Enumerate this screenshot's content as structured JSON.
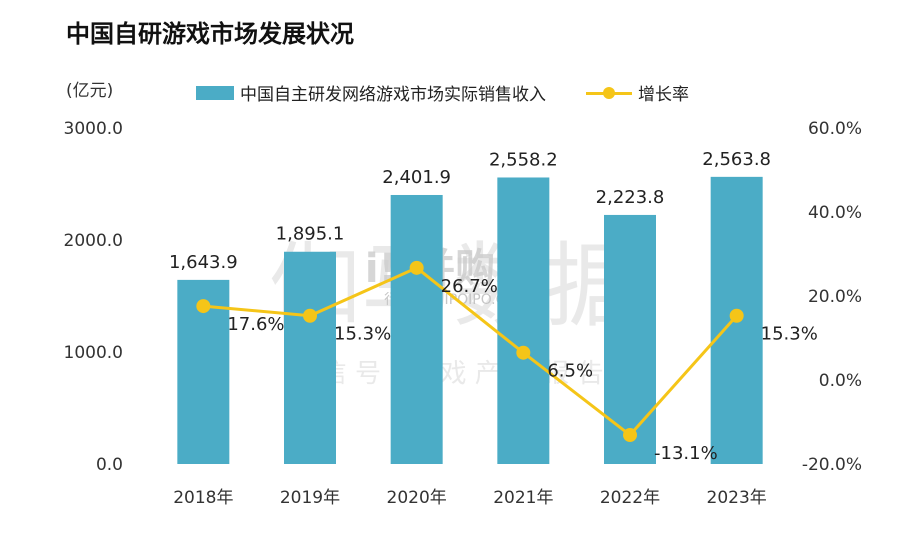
{
  "title": "中国自研游戏市场发展状况",
  "unit_label": "(亿元)",
  "colors": {
    "bar": "#4bacc6",
    "line": "#f5c518"
  },
  "watermark": {
    "main": "伽马数据",
    "sub": "微 信 号 : 游 戏 产 业 报 告",
    "logo_text": "i!!并购家",
    "logo_sub": "行业报告 IPOIPO.CN"
  },
  "chart_data": {
    "type": "bar",
    "categories": [
      "2018年",
      "2019年",
      "2020年",
      "2021年",
      "2022年",
      "2023年"
    ],
    "series": [
      {
        "name": "中国自主研发网络游戏市场实际销售收入",
        "type": "bar",
        "axis": "left",
        "values": [
          1643.9,
          1895.1,
          2401.9,
          2558.2,
          2223.8,
          2563.8
        ],
        "labels": [
          "1,643.9",
          "1,895.1",
          "2,401.9",
          "2,558.2",
          "2,223.8",
          "2,563.8"
        ]
      },
      {
        "name": "增长率",
        "type": "line",
        "axis": "right",
        "values": [
          17.6,
          15.3,
          26.7,
          6.5,
          -13.1,
          15.3
        ],
        "labels": [
          "17.6%",
          "15.3%",
          "26.7%",
          "6.5%",
          "-13.1%",
          "15.3%"
        ]
      }
    ],
    "y_left": {
      "min": 0,
      "max": 3000,
      "ticks": [
        0,
        1000,
        2000,
        3000
      ],
      "tick_labels": [
        "0.0",
        "1000.0",
        "2000.0",
        "3000.0"
      ]
    },
    "y_right": {
      "min": -20,
      "max": 60,
      "ticks": [
        -20,
        0,
        20,
        40,
        60
      ],
      "tick_labels": [
        "-20.0%",
        "0.0%",
        "20.0%",
        "40.0%",
        "60.0%"
      ]
    },
    "legend": "top",
    "grid": false
  }
}
